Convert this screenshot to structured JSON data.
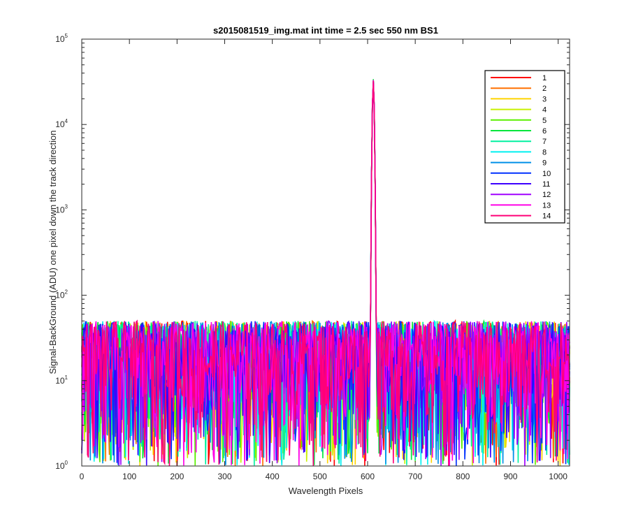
{
  "chart_data": {
    "type": "line",
    "title": "s2015081519_img.mat int time = 2.5 sec  550 nm BS1",
    "xlabel": "Wavelength Pixels",
    "ylabel": "Signal-BackGround (ADU) one pixel down the track direction",
    "yscale": "log",
    "xlim": [
      0,
      1024
    ],
    "ylim": [
      1,
      100000
    ],
    "xticks": [
      0,
      100,
      200,
      300,
      400,
      500,
      600,
      700,
      800,
      900,
      1000
    ],
    "xtick_labels": [
      "0",
      "100",
      "200",
      "300",
      "400",
      "500",
      "600",
      "700",
      "800",
      "900",
      "1000"
    ],
    "yticks": [
      {
        "base": "10",
        "exp": "0",
        "value": 1
      },
      {
        "base": "10",
        "exp": "1",
        "value": 10
      },
      {
        "base": "10",
        "exp": "2",
        "value": 100
      },
      {
        "base": "10",
        "exp": "3",
        "value": 1000
      },
      {
        "base": "10",
        "exp": "4",
        "value": 10000
      },
      {
        "base": "10",
        "exp": "5",
        "value": 100000
      }
    ],
    "grid": false,
    "legend_position": "top-right",
    "noise_range": [
      1,
      50
    ],
    "peak": {
      "x": 612,
      "y": 33000
    },
    "series": [
      {
        "name": "1",
        "color": "#ff0000"
      },
      {
        "name": "2",
        "color": "#ff7000"
      },
      {
        "name": "3",
        "color": "#ffd400"
      },
      {
        "name": "4",
        "color": "#c8f000"
      },
      {
        "name": "5",
        "color": "#5af000"
      },
      {
        "name": "6",
        "color": "#00e63c"
      },
      {
        "name": "7",
        "color": "#00f0a0"
      },
      {
        "name": "8",
        "color": "#00f0f0"
      },
      {
        "name": "9",
        "color": "#0090e8"
      },
      {
        "name": "10",
        "color": "#0030ff"
      },
      {
        "name": "11",
        "color": "#3c00ff"
      },
      {
        "name": "12",
        "color": "#a000ff"
      },
      {
        "name": "13",
        "color": "#ff00e6"
      },
      {
        "name": "14",
        "color": "#ff0078"
      }
    ]
  }
}
